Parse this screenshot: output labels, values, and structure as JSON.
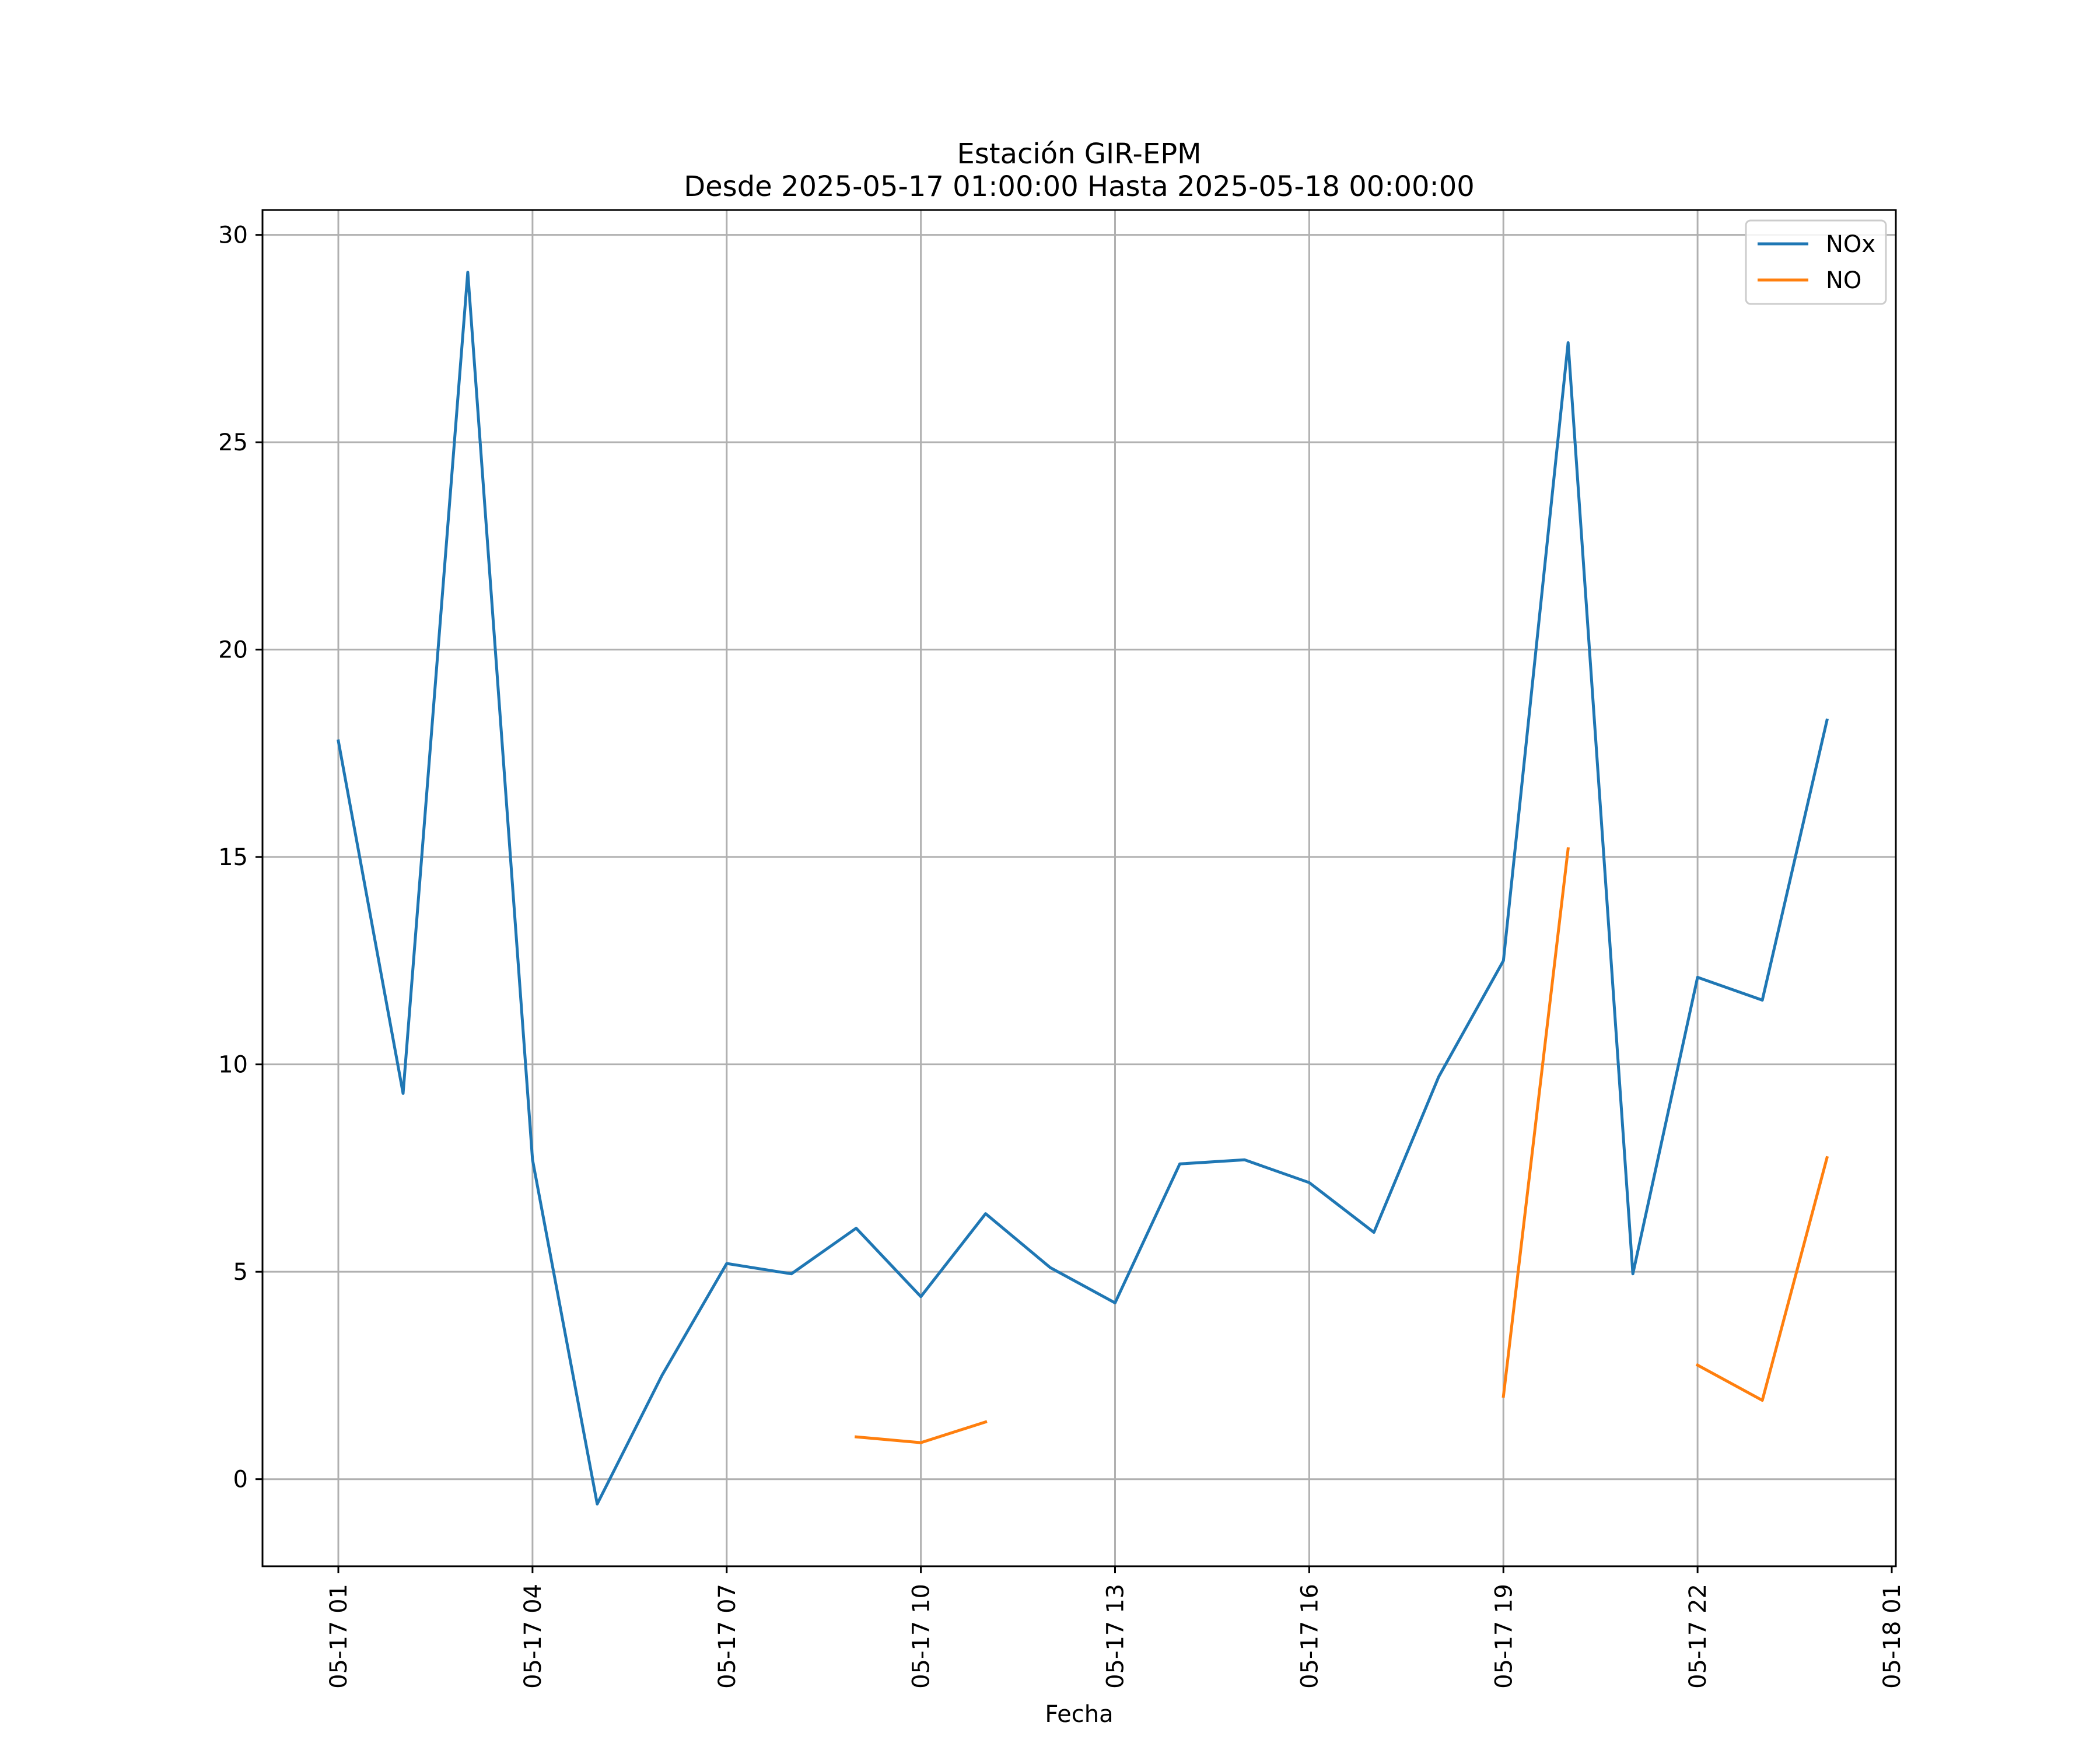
{
  "chart_data": {
    "type": "line",
    "title": "Estación GIR-EPM",
    "subtitle": "Desde 2025-05-17 01:00:00 Hasta 2025-05-18 00:00:00",
    "xlabel": "Fecha",
    "ylabel": "",
    "x": [
      "05-17 01",
      "05-17 02",
      "05-17 03",
      "05-17 04",
      "05-17 05",
      "05-17 06",
      "05-17 07",
      "05-17 08",
      "05-17 09",
      "05-17 10",
      "05-17 11",
      "05-17 12",
      "05-17 13",
      "05-17 14",
      "05-17 15",
      "05-17 16",
      "05-17 17",
      "05-17 18",
      "05-17 19",
      "05-17 20",
      "05-17 21",
      "05-17 22",
      "05-17 23",
      "05-18 00"
    ],
    "series": [
      {
        "name": "NOx",
        "color": "#1f77b4",
        "values": [
          17.8,
          9.3,
          29.1,
          7.7,
          -0.6,
          2.5,
          5.2,
          4.95,
          6.05,
          4.4,
          6.4,
          5.1,
          4.25,
          7.6,
          7.7,
          7.15,
          5.95,
          9.7,
          12.5,
          27.4,
          4.95,
          12.1,
          11.55,
          18.3
        ]
      },
      {
        "name": "NO",
        "color": "#ff7f0e",
        "values": [
          null,
          null,
          null,
          null,
          null,
          null,
          null,
          null,
          1.02,
          0.88,
          1.38,
          null,
          null,
          null,
          null,
          null,
          null,
          null,
          2.0,
          15.2,
          null,
          2.75,
          1.9,
          7.75
        ]
      }
    ],
    "xticks": [
      "05-17 01",
      "05-17 04",
      "05-17 07",
      "05-17 10",
      "05-17 13",
      "05-17 16",
      "05-17 19",
      "05-17 22",
      "05-18 01"
    ],
    "yticks": [
      "0",
      "5",
      "10",
      "15",
      "20",
      "25",
      "30"
    ],
    "ylim": [
      -2.1,
      30.6
    ],
    "xlim": [
      "05-17 00",
      "05-18 01"
    ],
    "grid": true,
    "legend_position": "top-right"
  }
}
